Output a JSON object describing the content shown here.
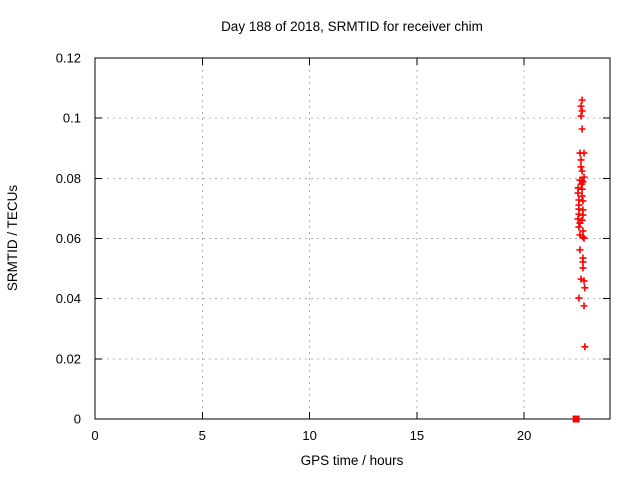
{
  "chart_data": {
    "type": "scatter",
    "title": "Day 188 of 2018, SRMTID for receiver chim",
    "xlabel": "GPS time / hours",
    "ylabel": "SRMTID / TECUs",
    "xlim": [
      0,
      24
    ],
    "ylim": [
      0,
      0.12
    ],
    "xticks": {
      "values": [
        0,
        5,
        10,
        15,
        20
      ],
      "labels": [
        "0",
        "5",
        "10",
        "15",
        "20"
      ]
    },
    "yticks": {
      "values": [
        0,
        0.02,
        0.04,
        0.06,
        0.08,
        0.1,
        0.12
      ],
      "labels": [
        "0",
        "0.02",
        "0.04",
        "0.06",
        "0.08",
        "0.1",
        "0.12"
      ]
    },
    "grid": {
      "on": true,
      "color": "#b0b0b0",
      "style": "dashed"
    },
    "legend": "none",
    "colors": {
      "series": "#ff0000",
      "axis": "#000000"
    },
    "series": [
      {
        "name": "srmtid-points",
        "marker": "plus",
        "color": "#ff0000",
        "points": [
          [
            22.7,
            0.106
          ],
          [
            22.65,
            0.104
          ],
          [
            22.7,
            0.1024
          ],
          [
            22.65,
            0.1007
          ],
          [
            22.7,
            0.0964
          ],
          [
            22.6,
            0.0884
          ],
          [
            22.79,
            0.0884
          ],
          [
            22.65,
            0.0861
          ],
          [
            22.65,
            0.0838
          ],
          [
            22.7,
            0.0824
          ],
          [
            22.79,
            0.0804
          ],
          [
            22.6,
            0.0794
          ],
          [
            22.7,
            0.0791
          ],
          [
            22.74,
            0.0788
          ],
          [
            22.67,
            0.0781
          ],
          [
            22.51,
            0.0768
          ],
          [
            22.7,
            0.0764
          ],
          [
            22.51,
            0.0751
          ],
          [
            22.7,
            0.0741
          ],
          [
            22.55,
            0.0728
          ],
          [
            22.74,
            0.0725
          ],
          [
            22.55,
            0.0711
          ],
          [
            22.55,
            0.0698
          ],
          [
            22.74,
            0.0695
          ],
          [
            22.55,
            0.0681
          ],
          [
            22.74,
            0.0678
          ],
          [
            22.51,
            0.0665
          ],
          [
            22.7,
            0.0661
          ],
          [
            22.6,
            0.0651
          ],
          [
            22.55,
            0.0638
          ],
          [
            22.74,
            0.0625
          ],
          [
            22.6,
            0.0612
          ],
          [
            22.74,
            0.0605
          ],
          [
            22.79,
            0.0601
          ],
          [
            22.6,
            0.0562
          ],
          [
            22.74,
            0.0535
          ],
          [
            22.74,
            0.0522
          ],
          [
            22.74,
            0.0502
          ],
          [
            22.65,
            0.0465
          ],
          [
            22.79,
            0.0459
          ],
          [
            22.83,
            0.0436
          ],
          [
            22.55,
            0.0402
          ],
          [
            22.79,
            0.0376
          ],
          [
            22.83,
            0.024
          ]
        ]
      },
      {
        "name": "zero-value-point",
        "marker": "square",
        "color": "#ff0000",
        "points": [
          [
            22.42,
            0.0
          ]
        ]
      }
    ]
  }
}
